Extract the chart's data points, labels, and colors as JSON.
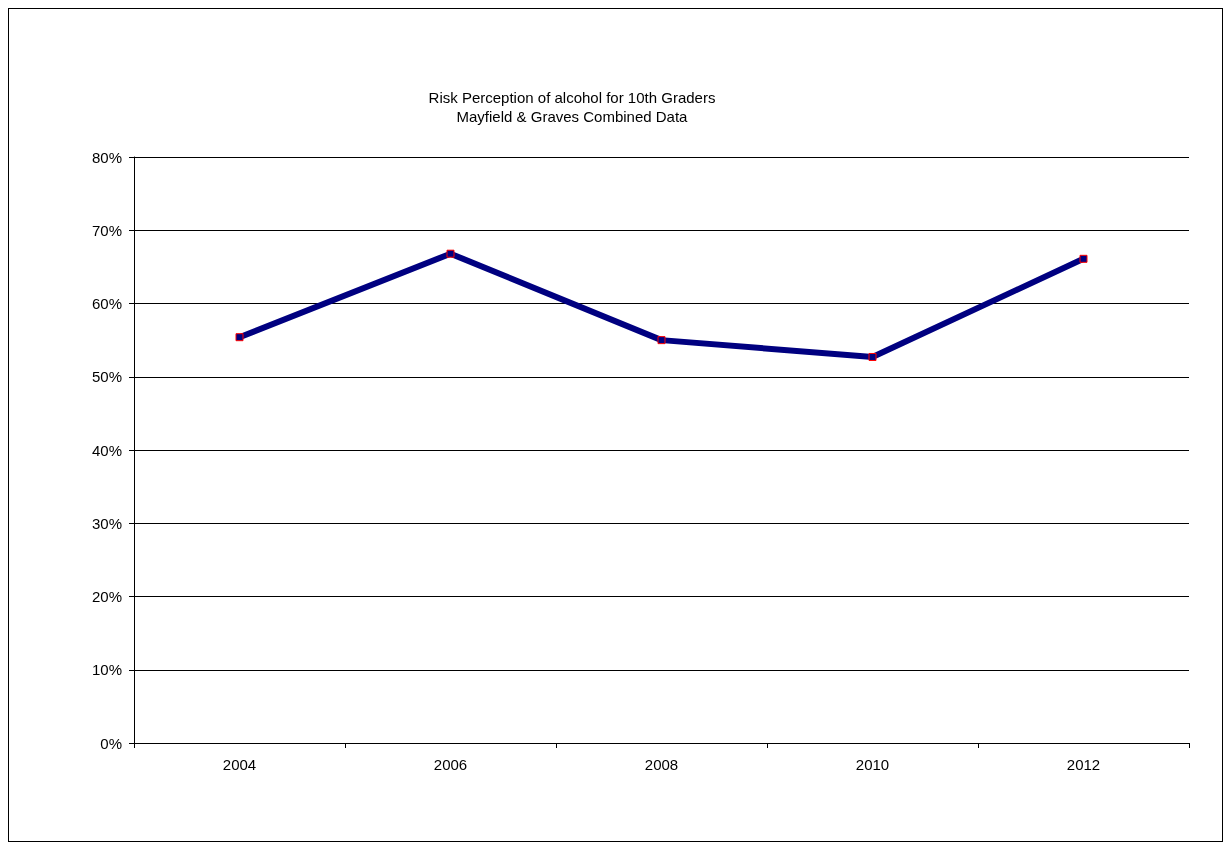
{
  "chart_data": {
    "type": "line",
    "title": "Risk Perception of alcohol for 10th Graders",
    "subtitle": "Mayfield & Graves Combined Data",
    "categories": [
      "2004",
      "2006",
      "2008",
      "2010",
      "2012"
    ],
    "series": [
      {
        "color": "#000080",
        "values": [
          55.4,
          66.8,
          55.0,
          52.7,
          66.1
        ]
      }
    ],
    "ylim": [
      0,
      80
    ],
    "yticks": [
      {
        "value": 0,
        "label": "0%"
      },
      {
        "value": 10,
        "label": "10%"
      },
      {
        "value": 20,
        "label": "20%"
      },
      {
        "value": 30,
        "label": "30%"
      },
      {
        "value": 40,
        "label": "40%"
      },
      {
        "value": 50,
        "label": "50%"
      },
      {
        "value": 60,
        "label": "60%"
      },
      {
        "value": 70,
        "label": "70%"
      },
      {
        "value": 80,
        "label": "80%"
      }
    ],
    "grid": "y",
    "marker": "square",
    "line_style": "solid"
  }
}
